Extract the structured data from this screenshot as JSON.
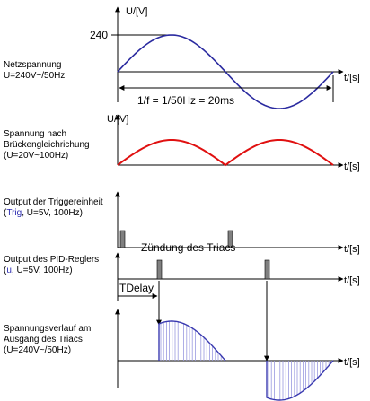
{
  "colors": {
    "mains": "#2b2ba0",
    "rectified": "#e01010",
    "pulse": "#808080",
    "output": "#3a3ab0",
    "output_fill": "#9a9ae0"
  },
  "panel1": {
    "label_line1": "Netzspannung",
    "label_line2": "U=240V~/50Hz",
    "y_axis": "U/[V]",
    "x_axis": "t/[s]",
    "tick_value": "240",
    "period_text": "1/f = 1/50Hz = 20ms"
  },
  "panel2": {
    "label_line1": "Spannung nach",
    "label_line2": "Brückengleichrichung",
    "label_line3": "(U=20V~100Hz)",
    "y_axis": "U/[V]",
    "x_axis": "t/[s]"
  },
  "panel3": {
    "label_line1": "Output der Triggereinheit",
    "label_paren_open": "(",
    "label_var": "Trig",
    "label_rest": ", U=5V, 100Hz)",
    "x_axis": "t/[s]"
  },
  "panel4": {
    "label_line1": "Output des PID-Reglers",
    "label_paren_open": "(",
    "label_var": "u",
    "label_rest": ", U=5V, 100Hz)",
    "x_axis": "t/[s]",
    "title": "Zündung des Triacs",
    "delay_label": "TDelay"
  },
  "panel5": {
    "label_line1": "Spannungsverlauf am",
    "label_line2": "Ausgang des Triacs",
    "label_line3": "(U=240V~/50Hz)",
    "x_axis": "t/[s]"
  }
}
